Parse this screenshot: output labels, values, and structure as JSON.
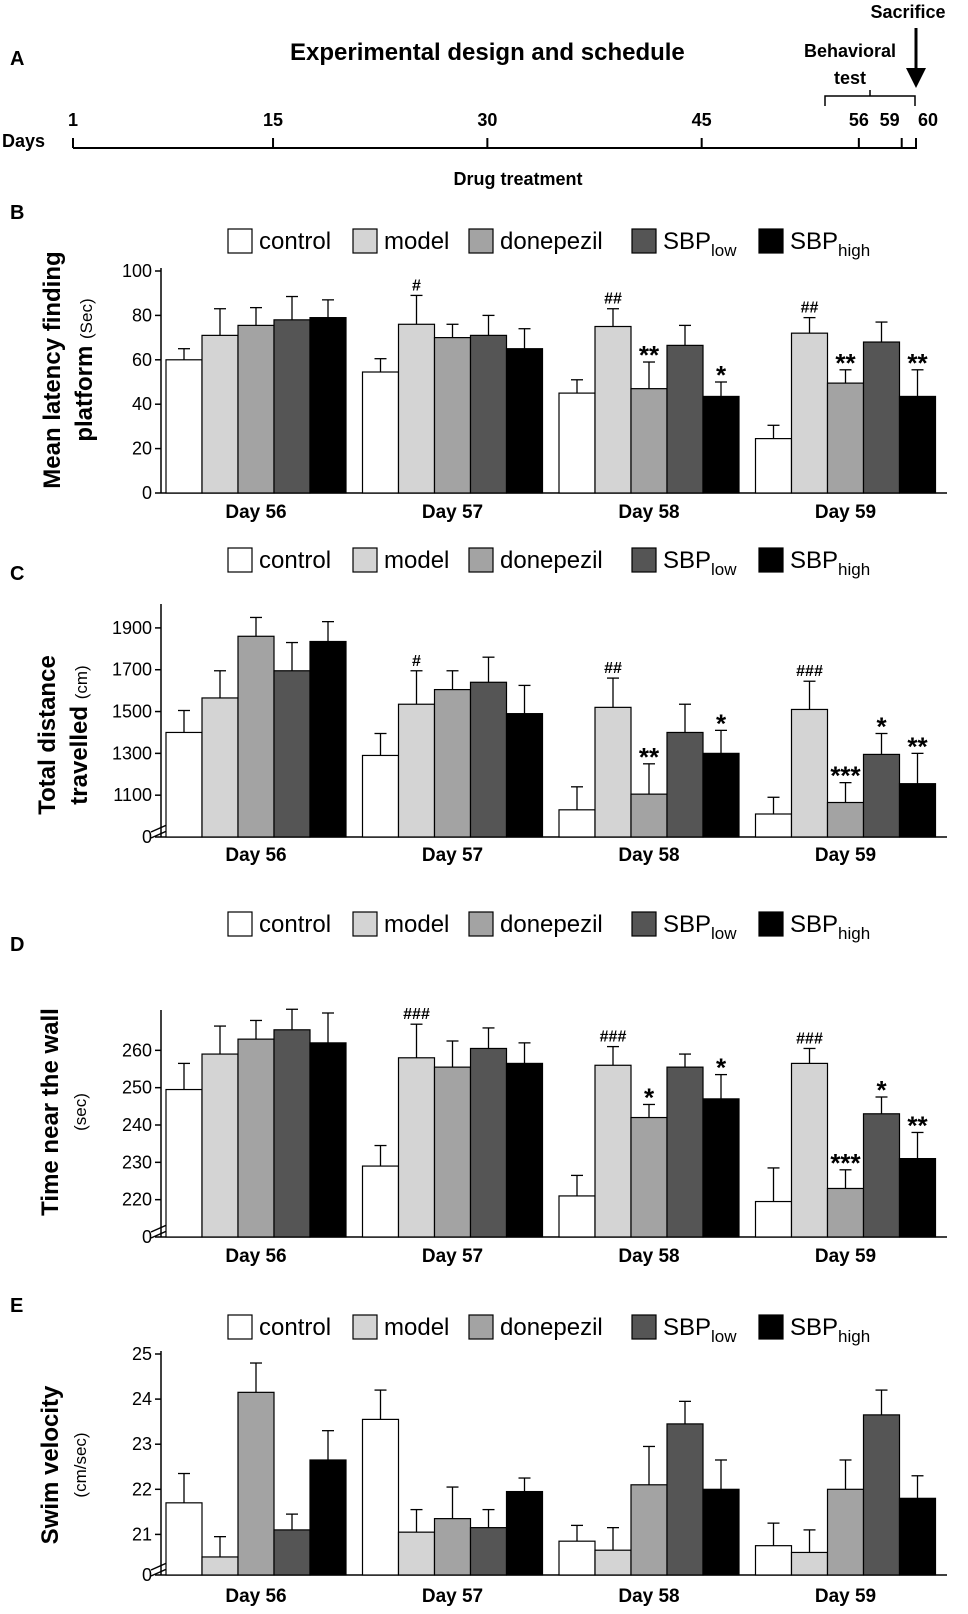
{
  "colors": {
    "control": "#ffffff",
    "model": "#d4d4d4",
    "donepezil": "#a3a3a3",
    "sbp_low": "#555555",
    "sbp_high": "#000000"
  },
  "schedule": {
    "panel_label": "A",
    "title": "Experimental design and schedule",
    "axis_label": "Days",
    "ticks": [
      1,
      15,
      30,
      45,
      56,
      59,
      60
    ],
    "treatment_label": "Drug treatment",
    "behavioral_label_1": "Behavioral",
    "behavioral_label_2": "test",
    "sacrifice_label": "Sacrifice"
  },
  "legend": {
    "control": "control",
    "model": "model",
    "donepezil": "donepezil",
    "sbp_base": "SBP",
    "low_sub": "low",
    "high_sub": "high"
  },
  "chart_data": [
    {
      "panel": "B",
      "type": "bar",
      "ylabel": "Mean latency finding platform",
      "yunit": "(Sec)",
      "ylim": [
        0,
        100
      ],
      "yticks": [
        0,
        20,
        40,
        60,
        80,
        100
      ],
      "categories": [
        "Day 56",
        "Day 57",
        "Day 58",
        "Day 59"
      ],
      "series": [
        {
          "name": "control",
          "values": [
            60,
            54.5,
            45,
            24.5
          ],
          "errors": [
            5,
            6,
            6,
            6
          ],
          "labels": [
            "",
            "",
            "",
            ""
          ]
        },
        {
          "name": "model",
          "values": [
            71,
            76,
            75,
            72
          ],
          "errors": [
            12,
            13,
            8,
            7
          ],
          "labels": [
            "",
            "#",
            "##",
            "##"
          ]
        },
        {
          "name": "donepezil",
          "values": [
            75.5,
            70,
            47,
            49.5
          ],
          "errors": [
            8,
            6,
            12,
            6
          ],
          "labels": [
            "",
            "",
            "**",
            "**"
          ]
        },
        {
          "name": "SBPlow",
          "values": [
            78,
            71,
            66.5,
            68
          ],
          "errors": [
            10.5,
            9,
            9,
            9
          ],
          "labels": [
            "",
            "",
            "",
            ""
          ]
        },
        {
          "name": "SBPhigh",
          "values": [
            79,
            65,
            43.5,
            43.5
          ],
          "errors": [
            8,
            9,
            6.5,
            12
          ],
          "labels": [
            "",
            "",
            "*",
            "**"
          ]
        }
      ]
    },
    {
      "panel": "C",
      "type": "bar",
      "ylabel": "Total distance travelled",
      "yunit": "(cm)",
      "ylim": [
        900,
        2000
      ],
      "axis_break": true,
      "yticks": [
        1100,
        1300,
        1500,
        1700,
        1900
      ],
      "yticklabels": [
        "0",
        "1100",
        "1300",
        "1500",
        "1700",
        "1900"
      ],
      "categories": [
        "Day 56",
        "Day 57",
        "Day 58",
        "Day 59"
      ],
      "series": [
        {
          "name": "control",
          "values": [
            1400,
            1290,
            1030,
            1010
          ],
          "errors": [
            105,
            105,
            110,
            80
          ],
          "labels": [
            "",
            "",
            "",
            ""
          ]
        },
        {
          "name": "model",
          "values": [
            1565,
            1535,
            1520,
            1510
          ],
          "errors": [
            130,
            160,
            140,
            135
          ],
          "labels": [
            "",
            "#",
            "##",
            "###"
          ]
        },
        {
          "name": "donepezil",
          "values": [
            1860,
            1605,
            1105,
            1065
          ],
          "errors": [
            90,
            90,
            145,
            95
          ],
          "labels": [
            "",
            "",
            "**",
            "***"
          ]
        },
        {
          "name": "SBPlow",
          "values": [
            1695,
            1640,
            1400,
            1295
          ],
          "errors": [
            135,
            120,
            135,
            100
          ],
          "labels": [
            "",
            "",
            "",
            "*"
          ]
        },
        {
          "name": "SBPhigh",
          "values": [
            1835,
            1490,
            1300,
            1155
          ],
          "errors": [
            95,
            135,
            110,
            145
          ],
          "labels": [
            "",
            "",
            "*",
            "**"
          ]
        }
      ]
    },
    {
      "panel": "D",
      "type": "bar",
      "ylabel": "Time near the wall",
      "yunit": "(sec)",
      "ylim": [
        210,
        270
      ],
      "axis_break": true,
      "yticks": [
        220,
        230,
        240,
        250,
        260
      ],
      "yticklabels": [
        "0",
        "220",
        "230",
        "240",
        "250",
        "260"
      ],
      "categories": [
        "Day 56",
        "Day 57",
        "Day 58",
        "Day 59"
      ],
      "series": [
        {
          "name": "control",
          "values": [
            249.5,
            229,
            221,
            219.5
          ],
          "errors": [
            7,
            5.5,
            5.5,
            9
          ],
          "labels": [
            "",
            "",
            "",
            ""
          ]
        },
        {
          "name": "model",
          "values": [
            259,
            258,
            256,
            256.5
          ],
          "errors": [
            7.5,
            9,
            5,
            4
          ],
          "labels": [
            "",
            "###",
            "###",
            "###"
          ]
        },
        {
          "name": "donepezil",
          "values": [
            263,
            255.5,
            242,
            223
          ],
          "errors": [
            5,
            7,
            3.5,
            5
          ],
          "labels": [
            "",
            "",
            "*",
            "***"
          ]
        },
        {
          "name": "SBPlow",
          "values": [
            265.5,
            260.5,
            255.5,
            243
          ],
          "errors": [
            5.5,
            5.5,
            3.5,
            4.5
          ],
          "labels": [
            "",
            "",
            "",
            "*"
          ]
        },
        {
          "name": "SBPhigh",
          "values": [
            262,
            256.5,
            247,
            231
          ],
          "errors": [
            8,
            5.5,
            6.5,
            7
          ],
          "labels": [
            "",
            "",
            "*",
            "**"
          ]
        }
      ]
    },
    {
      "panel": "E",
      "type": "bar",
      "ylabel": "Swim velocity",
      "yunit": "(cm/sec)",
      "ylim": [
        20.1,
        25
      ],
      "axis_break": true,
      "yticks": [
        21,
        22,
        23,
        24,
        25
      ],
      "yticklabels": [
        "0",
        "21",
        "22",
        "23",
        "24",
        "25"
      ],
      "categories": [
        "Day 56",
        "Day 57",
        "Day 58",
        "Day 59"
      ],
      "series": [
        {
          "name": "control",
          "values": [
            21.7,
            23.55,
            20.85,
            20.75
          ],
          "errors": [
            0.65,
            0.65,
            0.35,
            0.5
          ],
          "labels": [
            "",
            "",
            "",
            ""
          ]
        },
        {
          "name": "model",
          "values": [
            20.5,
            21.05,
            20.65,
            20.6
          ],
          "errors": [
            0.45,
            0.5,
            0.5,
            0.5
          ],
          "labels": [
            "",
            "",
            "",
            ""
          ]
        },
        {
          "name": "donepezil",
          "values": [
            24.15,
            21.35,
            22.1,
            22
          ],
          "errors": [
            0.65,
            0.7,
            0.85,
            0.65
          ],
          "labels": [
            "",
            "",
            "",
            ""
          ]
        },
        {
          "name": "SBPlow",
          "values": [
            21.1,
            21.15,
            23.45,
            23.65
          ],
          "errors": [
            0.35,
            0.4,
            0.5,
            0.55
          ],
          "labels": [
            "",
            "",
            "",
            ""
          ]
        },
        {
          "name": "SBPhigh",
          "values": [
            22.65,
            21.95,
            22,
            21.8
          ],
          "errors": [
            0.65,
            0.3,
            0.65,
            0.5
          ],
          "labels": [
            "",
            "",
            "",
            ""
          ]
        }
      ]
    }
  ]
}
